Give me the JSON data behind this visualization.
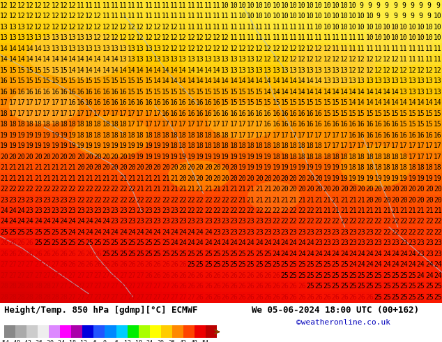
{
  "title_left": "Height/Temp. 850 hPa [gdmp][°C] ECMWF",
  "title_right": "We 05-06-2024 18:00 UTC (00+162)",
  "credit": "©weatheronline.co.uk",
  "colorbar_values": [
    -54,
    -48,
    -42,
    -36,
    -30,
    -24,
    -18,
    -12,
    -6,
    0,
    6,
    12,
    18,
    24,
    30,
    36,
    42,
    48,
    54
  ],
  "colorbar_colors": [
    "#888888",
    "#aaaaaa",
    "#cccccc",
    "#eeeeee",
    "#dd88ff",
    "#ff00ff",
    "#aa00aa",
    "#0000dd",
    "#2255ff",
    "#0088ff",
    "#00ccff",
    "#00ee00",
    "#aaff00",
    "#ffff00",
    "#ffcc00",
    "#ff8800",
    "#ff4400",
    "#ee0000",
    "#bb0000"
  ],
  "bg_color": "#ffffff",
  "title_font_size": 9,
  "credit_color": "#0000bb",
  "credit_font_size": 8,
  "colorbar_label_font_size": 6,
  "map_font_size": 7,
  "map_font_color_dark": "#000000",
  "map_font_color_red": "#cc0000",
  "map_rows": 28,
  "map_cols": 52
}
